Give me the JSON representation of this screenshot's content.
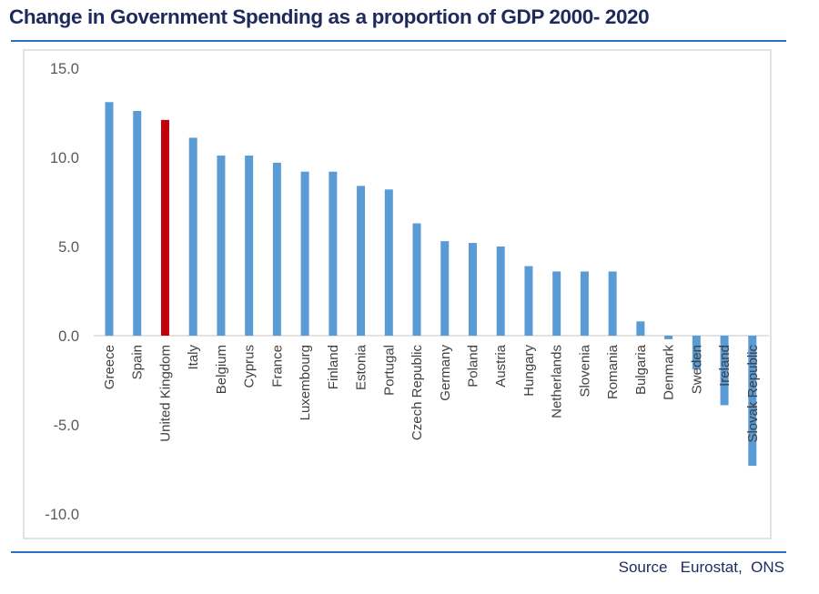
{
  "chart_data": {
    "type": "bar",
    "title": "Change in Government Spending as a proportion of GDP 2000- 2020",
    "xlabel": "",
    "ylabel": "",
    "ylim": [
      -10,
      15
    ],
    "yticks": [
      15,
      10,
      5,
      0,
      -5,
      -10
    ],
    "ytick_labels": [
      "15.0",
      "10.0",
      "5.0",
      "0.0",
      "-5.0",
      "-10.0"
    ],
    "grid": false,
    "legend": "none",
    "categories": [
      "Greece",
      "Spain",
      "United Kingdom",
      "Italy",
      "Belgium",
      "Cyprus",
      "France",
      "Luxembourg",
      "Finland",
      "Estonia",
      "Portugal",
      "Czech Republic",
      "Germany",
      "Poland",
      "Austria",
      "Hungary",
      "Netherlands",
      "Slovenia",
      "Romania",
      "Bulgaria",
      "Denmark",
      "Sweden",
      "Ireland",
      "Slovak Republic"
    ],
    "values": [
      13.1,
      12.6,
      12.1,
      11.1,
      10.1,
      10.1,
      9.7,
      9.2,
      9.2,
      8.4,
      8.2,
      6.3,
      5.3,
      5.2,
      5.0,
      3.9,
      3.6,
      3.6,
      3.6,
      0.8,
      -0.2,
      -1.9,
      -3.9,
      -7.3
    ],
    "highlight": "United Kingdom",
    "colors": {
      "default": "#5b9bd5",
      "highlight": "#c0000b"
    }
  },
  "footer": {
    "source": "Source   Eurostat,  ONS"
  },
  "colors": {
    "rule": "#2e6fc0",
    "title": "#1f2a5c",
    "frame": "#d9d9d9",
    "axis_text": "#595959"
  }
}
